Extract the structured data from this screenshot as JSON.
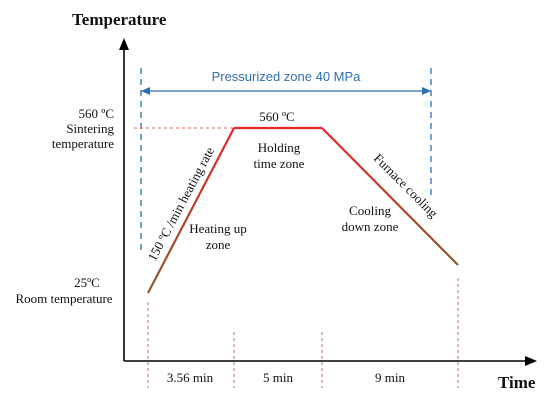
{
  "axes": {
    "y_title": "Temperature",
    "x_title": "Time"
  },
  "temperatures": {
    "high_value": "560 ºC",
    "high_name_line1": "Sintering",
    "high_name_line2": "temperature",
    "low_value": "25ºC",
    "low_name": "Room temperature"
  },
  "pressure": {
    "label": "Pressurized zone 40 MPa",
    "color": "#2e6fb0"
  },
  "profile": {
    "peak_label": "560 ºC",
    "heating_rate_label": "150 ºC /min heating rate",
    "furnace_label": "Furnace cooling",
    "heating_color": "#e8252a",
    "cooling_color": "#8b5a2b"
  },
  "zones": {
    "heating_line1": "Heating up",
    "heating_line2": "zone",
    "holding_line1": "Holding",
    "holding_line2": "time zone",
    "cooling_line1": "Cooling",
    "cooling_line2": "down zone"
  },
  "durations": {
    "heating": "3.56 min",
    "holding": "5 min",
    "cooling": "9 min"
  }
}
